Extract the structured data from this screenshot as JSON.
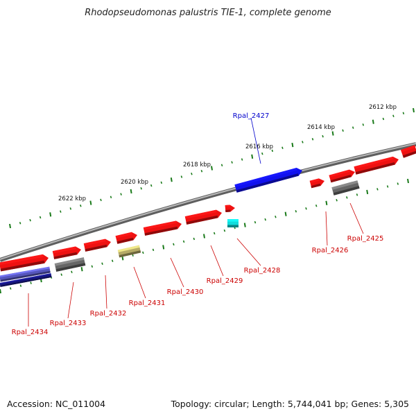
{
  "title": "Rhodopseudomonas palustris TIE-1, complete genome",
  "footer": {
    "accession": "Accession: NC_011004",
    "summary": "Topology: circular; Length: 5,744,041 bp; Genes: 5,305"
  },
  "colors": {
    "backbone": "#8a8a8a",
    "tick": "#1a7a1a",
    "gene_red": "#ee1111",
    "gene_blue": "#1111ee",
    "gene_navy": "#15157a",
    "gene_slate": "#5555bb",
    "gene_gray": "#666666",
    "gene_olive": "#b5aa66",
    "gene_cyan": "#11dddd",
    "label_red": "#cc0000",
    "label_blue": "#0000cc"
  },
  "kbp_labels": [
    "2612 kbp",
    "2614 kbp",
    "2616 kbp",
    "2618 kbp",
    "2620 kbp",
    "2622 kbp"
  ],
  "genes": [
    {
      "id": "Rpal_2425",
      "color": "label_red"
    },
    {
      "id": "Rpal_2426",
      "color": "label_red"
    },
    {
      "id": "Rpal_2427",
      "color": "label_blue"
    },
    {
      "id": "Rpal_2428",
      "color": "label_red"
    },
    {
      "id": "Rpal_2429",
      "color": "label_red"
    },
    {
      "id": "Rpal_2430",
      "color": "label_red"
    },
    {
      "id": "Rpal_2431",
      "color": "label_red"
    },
    {
      "id": "Rpal_2432",
      "color": "label_red"
    },
    {
      "id": "Rpal_2433",
      "color": "label_red"
    },
    {
      "id": "Rpal_2434",
      "color": "label_red"
    }
  ]
}
